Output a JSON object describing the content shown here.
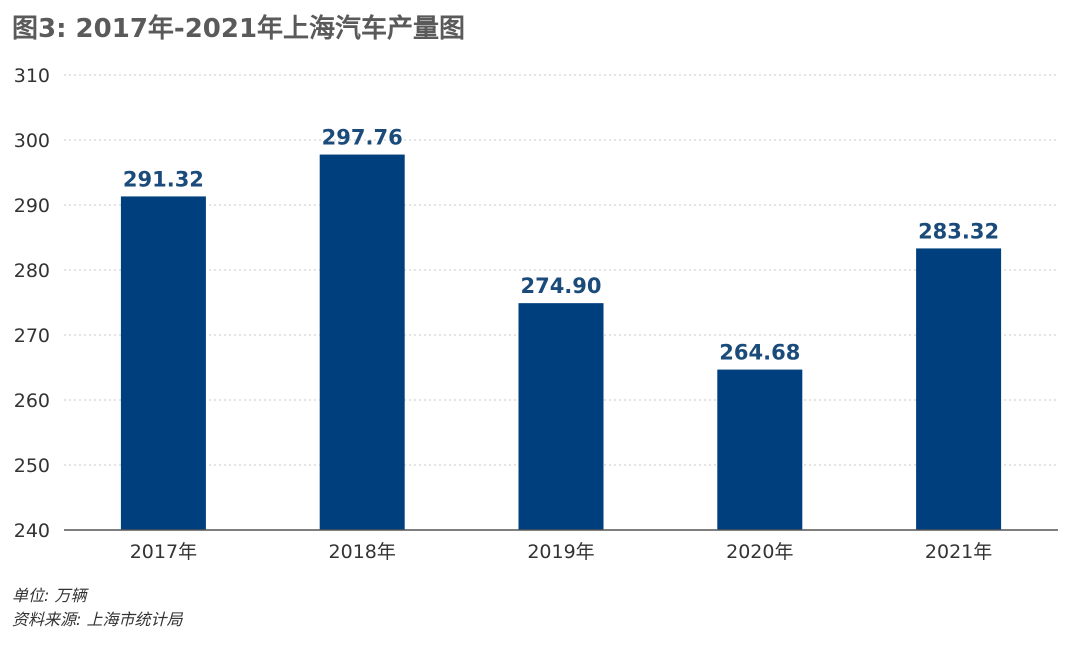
{
  "title": "图3: 2017年-2021年上海汽车产量图",
  "unit_note": "单位: 万辆",
  "source_note": "资料来源: 上海市统计局",
  "colors": {
    "bar": "#003f7e",
    "label": "#1a4b7a",
    "axis_text": "#333333",
    "grid": "#c8c8c8"
  },
  "chart_data": {
    "type": "bar",
    "title": "图3: 2017年-2021年上海汽车产量图",
    "categories": [
      "2017年",
      "2018年",
      "2019年",
      "2020年",
      "2021年"
    ],
    "values": [
      291.32,
      297.76,
      274.9,
      264.68,
      283.32
    ],
    "value_labels": [
      "291.32",
      "297.76",
      "274.90",
      "264.68",
      "283.32"
    ],
    "yticks": [
      "240",
      "250",
      "260",
      "270",
      "280",
      "290",
      "300",
      "310"
    ],
    "ylim": [
      240,
      310
    ],
    "xlabel": "",
    "ylabel": "",
    "grid": true,
    "legend": "none"
  }
}
